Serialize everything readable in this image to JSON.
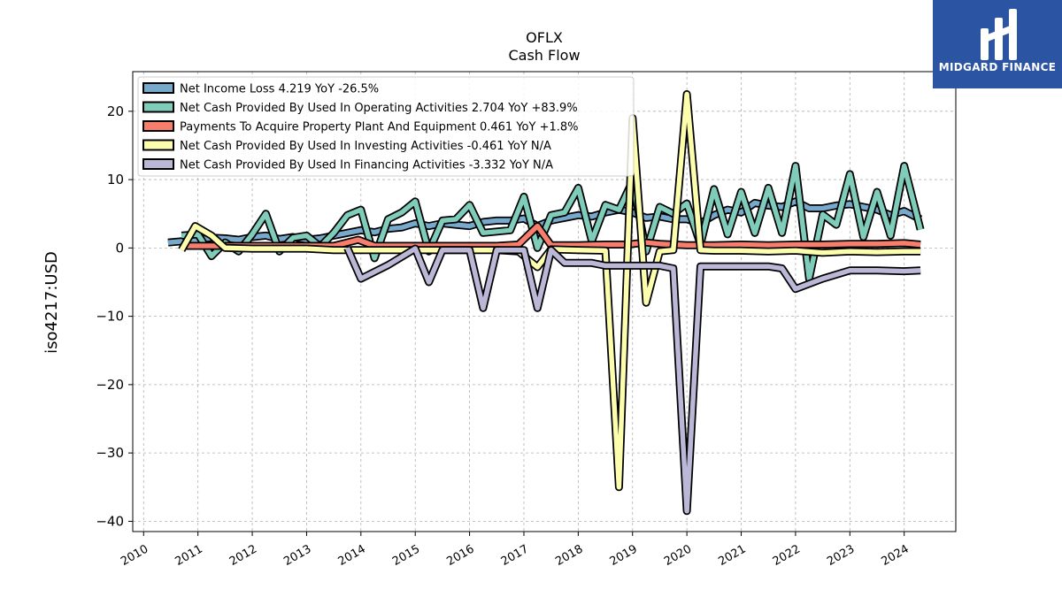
{
  "logo": {
    "text": "MIDGARD FINANCE",
    "bg_color": "#2b55a3"
  },
  "chart_data": {
    "type": "line",
    "title": "OFLX",
    "subtitle": "Cash Flow",
    "ylabel": "iso4217:USD",
    "xlabel": "",
    "xlim": [
      2009.8,
      2024.95
    ],
    "ylim": [
      -41.5,
      25.8
    ],
    "x_ticks": [
      2010,
      2011,
      2012,
      2013,
      2014,
      2015,
      2016,
      2017,
      2018,
      2019,
      2020,
      2021,
      2022,
      2023,
      2024
    ],
    "x_tick_labels": [
      "2010",
      "2011",
      "2012",
      "2013",
      "2014",
      "2015",
      "2016",
      "2017",
      "2018",
      "2019",
      "2020",
      "2021",
      "2022",
      "2023",
      "2024"
    ],
    "y_ticks": [
      20,
      10,
      0,
      -10,
      -20,
      -30,
      -40
    ],
    "y_tick_labels": [
      "20",
      "10",
      "0",
      "−10",
      "−20",
      "−30",
      "−40"
    ],
    "grid": true,
    "legend_position": "top-left",
    "series": [
      {
        "name": "Net Income Loss  4.219 YoY -26.5%",
        "color": "#77a9cc",
        "x": [
          2010.45,
          2011.0,
          2011.25,
          2011.5,
          2011.75,
          2012.0,
          2012.25,
          2012.5,
          2012.75,
          2013.0,
          2013.25,
          2013.5,
          2013.75,
          2014.0,
          2014.25,
          2014.5,
          2014.75,
          2015.0,
          2015.25,
          2015.5,
          2015.75,
          2016.0,
          2016.25,
          2016.5,
          2016.75,
          2017.0,
          2017.25,
          2017.5,
          2017.75,
          2018.0,
          2018.25,
          2018.5,
          2018.75,
          2019.0,
          2019.25,
          2019.5,
          2019.75,
          2020.0,
          2020.25,
          2020.5,
          2020.75,
          2021.0,
          2021.25,
          2021.5,
          2021.75,
          2022.0,
          2022.25,
          2022.5,
          2022.75,
          2023.0,
          2023.25,
          2023.5,
          2023.75,
          2024.0,
          2024.3
        ],
        "y": [
          0.8,
          1.2,
          1.5,
          1.4,
          1.2,
          1.6,
          1.8,
          1.3,
          1.6,
          1.2,
          1.4,
          1.8,
          2.2,
          2.6,
          2.3,
          2.8,
          3.0,
          3.6,
          3.2,
          3.6,
          3.4,
          3.2,
          3.8,
          4.0,
          4.0,
          4.3,
          3.2,
          4.0,
          4.4,
          4.8,
          4.6,
          5.2,
          5.6,
          5.2,
          4.4,
          4.6,
          4.2,
          4.2,
          3.6,
          4.8,
          5.6,
          5.2,
          6.6,
          6.2,
          6.0,
          6.8,
          5.8,
          5.8,
          6.2,
          6.4,
          6.0,
          5.6,
          4.8,
          5.4,
          4.2
        ]
      },
      {
        "name": "Net Cash Provided By Used In Operating Activities  2.704 YoY +83.9%",
        "color": "#7fccbb",
        "x": [
          2010.7,
          2011.0,
          2011.25,
          2011.5,
          2011.75,
          2012.0,
          2012.25,
          2012.5,
          2012.75,
          2013.0,
          2013.25,
          2013.5,
          2013.75,
          2014.0,
          2014.25,
          2014.5,
          2014.75,
          2015.0,
          2015.25,
          2015.5,
          2015.75,
          2016.0,
          2016.25,
          2016.5,
          2016.75,
          2017.0,
          2017.25,
          2017.5,
          2017.75,
          2018.0,
          2018.25,
          2018.5,
          2018.75,
          2019.0,
          2019.25,
          2019.5,
          2019.75,
          2020.0,
          2020.25,
          2020.5,
          2020.75,
          2021.0,
          2021.25,
          2021.5,
          2021.75,
          2022.0,
          2022.25,
          2022.5,
          2022.75,
          2023.0,
          2023.25,
          2023.5,
          2023.75,
          2024.0,
          2024.3
        ],
        "y": [
          1.8,
          2.0,
          -1.2,
          0.8,
          -0.5,
          2.0,
          5.0,
          -0.5,
          1.5,
          1.8,
          0.2,
          2.2,
          4.8,
          5.6,
          -1.5,
          4.2,
          5.2,
          6.8,
          -0.5,
          4.0,
          4.2,
          6.3,
          2.2,
          2.4,
          2.6,
          7.5,
          0.0,
          4.8,
          5.2,
          8.8,
          1.0,
          6.3,
          5.6,
          9.8,
          -0.5,
          6.0,
          5.0,
          6.5,
          0.5,
          8.6,
          2.0,
          8.2,
          2.2,
          8.8,
          2.2,
          12.0,
          -4.5,
          4.9,
          3.4,
          10.8,
          1.6,
          8.2,
          1.8,
          12.0,
          2.7
        ]
      },
      {
        "name": "Payments To Acquire Property Plant And Equipment  0.461 YoY +1.8%",
        "color": "#f77d6c",
        "x": [
          2010.7,
          2011.0,
          2011.5,
          2012.0,
          2012.5,
          2013.0,
          2013.5,
          2013.95,
          2014.25,
          2014.5,
          2015.0,
          2015.5,
          2016.0,
          2016.5,
          2016.9,
          2017.25,
          2017.5,
          2018.0,
          2018.5,
          2018.9,
          2019.25,
          2019.5,
          2020.0,
          2020.5,
          2021.0,
          2021.5,
          2022.0,
          2022.5,
          2023.0,
          2023.5,
          2024.0,
          2024.3
        ],
        "y": [
          0.3,
          0.3,
          0.3,
          0.3,
          0.3,
          0.3,
          0.3,
          1.2,
          0.3,
          0.3,
          0.3,
          0.3,
          0.3,
          0.3,
          0.5,
          3.2,
          0.4,
          0.4,
          0.5,
          0.5,
          0.8,
          0.6,
          0.4,
          0.4,
          0.5,
          0.4,
          0.5,
          0.5,
          0.6,
          0.6,
          0.7,
          0.5
        ]
      },
      {
        "name": "Net Cash Provided By Used In Investing Activities  -0.461 YoY N/A",
        "color": "#fdfdae",
        "x": [
          2010.7,
          2010.95,
          2011.25,
          2011.5,
          2012.0,
          2012.5,
          2013.0,
          2013.5,
          2014.0,
          2014.5,
          2015.0,
          2015.5,
          2016.0,
          2016.5,
          2016.9,
          2017.25,
          2017.5,
          2018.0,
          2018.5,
          2018.75,
          2019.0,
          2019.25,
          2019.5,
          2019.75,
          2020.0,
          2020.25,
          2020.5,
          2021.0,
          2021.5,
          2022.0,
          2022.5,
          2023.0,
          2023.5,
          2024.0,
          2024.3
        ],
        "y": [
          -0.3,
          3.2,
          1.8,
          0.0,
          -0.1,
          -0.1,
          -0.1,
          -0.3,
          -0.3,
          -0.3,
          -0.3,
          -0.3,
          -0.3,
          -0.3,
          -0.5,
          -2.8,
          -0.2,
          -0.3,
          -0.4,
          -35.0,
          19.0,
          -8.0,
          -0.5,
          -0.3,
          22.5,
          -0.3,
          -0.4,
          -0.4,
          -0.5,
          -0.4,
          -0.7,
          -0.5,
          -0.6,
          -0.5,
          -0.5
        ]
      },
      {
        "name": "Net Cash Provided By Used In Financing Activities  -3.332 YoY N/A",
        "color": "#bbb7d7",
        "x": [
          2013.75,
          2014.0,
          2014.5,
          2015.0,
          2015.25,
          2015.5,
          2016.0,
          2016.25,
          2016.5,
          2017.0,
          2017.25,
          2017.5,
          2017.75,
          2018.0,
          2018.25,
          2018.5,
          2019.0,
          2019.5,
          2019.75,
          2020.0,
          2020.25,
          2020.5,
          2021.0,
          2021.5,
          2021.75,
          2022.0,
          2022.5,
          2023.0,
          2023.5,
          2024.0,
          2024.3
        ],
        "y": [
          0.0,
          -4.5,
          -2.5,
          -0.1,
          -5.0,
          -0.3,
          -0.3,
          -8.8,
          -0.3,
          -0.3,
          -8.8,
          -0.3,
          -2.2,
          -2.2,
          -2.2,
          -2.6,
          -2.6,
          -2.6,
          -3.0,
          -38.5,
          -2.7,
          -2.7,
          -2.7,
          -2.7,
          -3.0,
          -6.0,
          -4.5,
          -3.3,
          -3.3,
          -3.4,
          -3.3
        ]
      }
    ]
  }
}
